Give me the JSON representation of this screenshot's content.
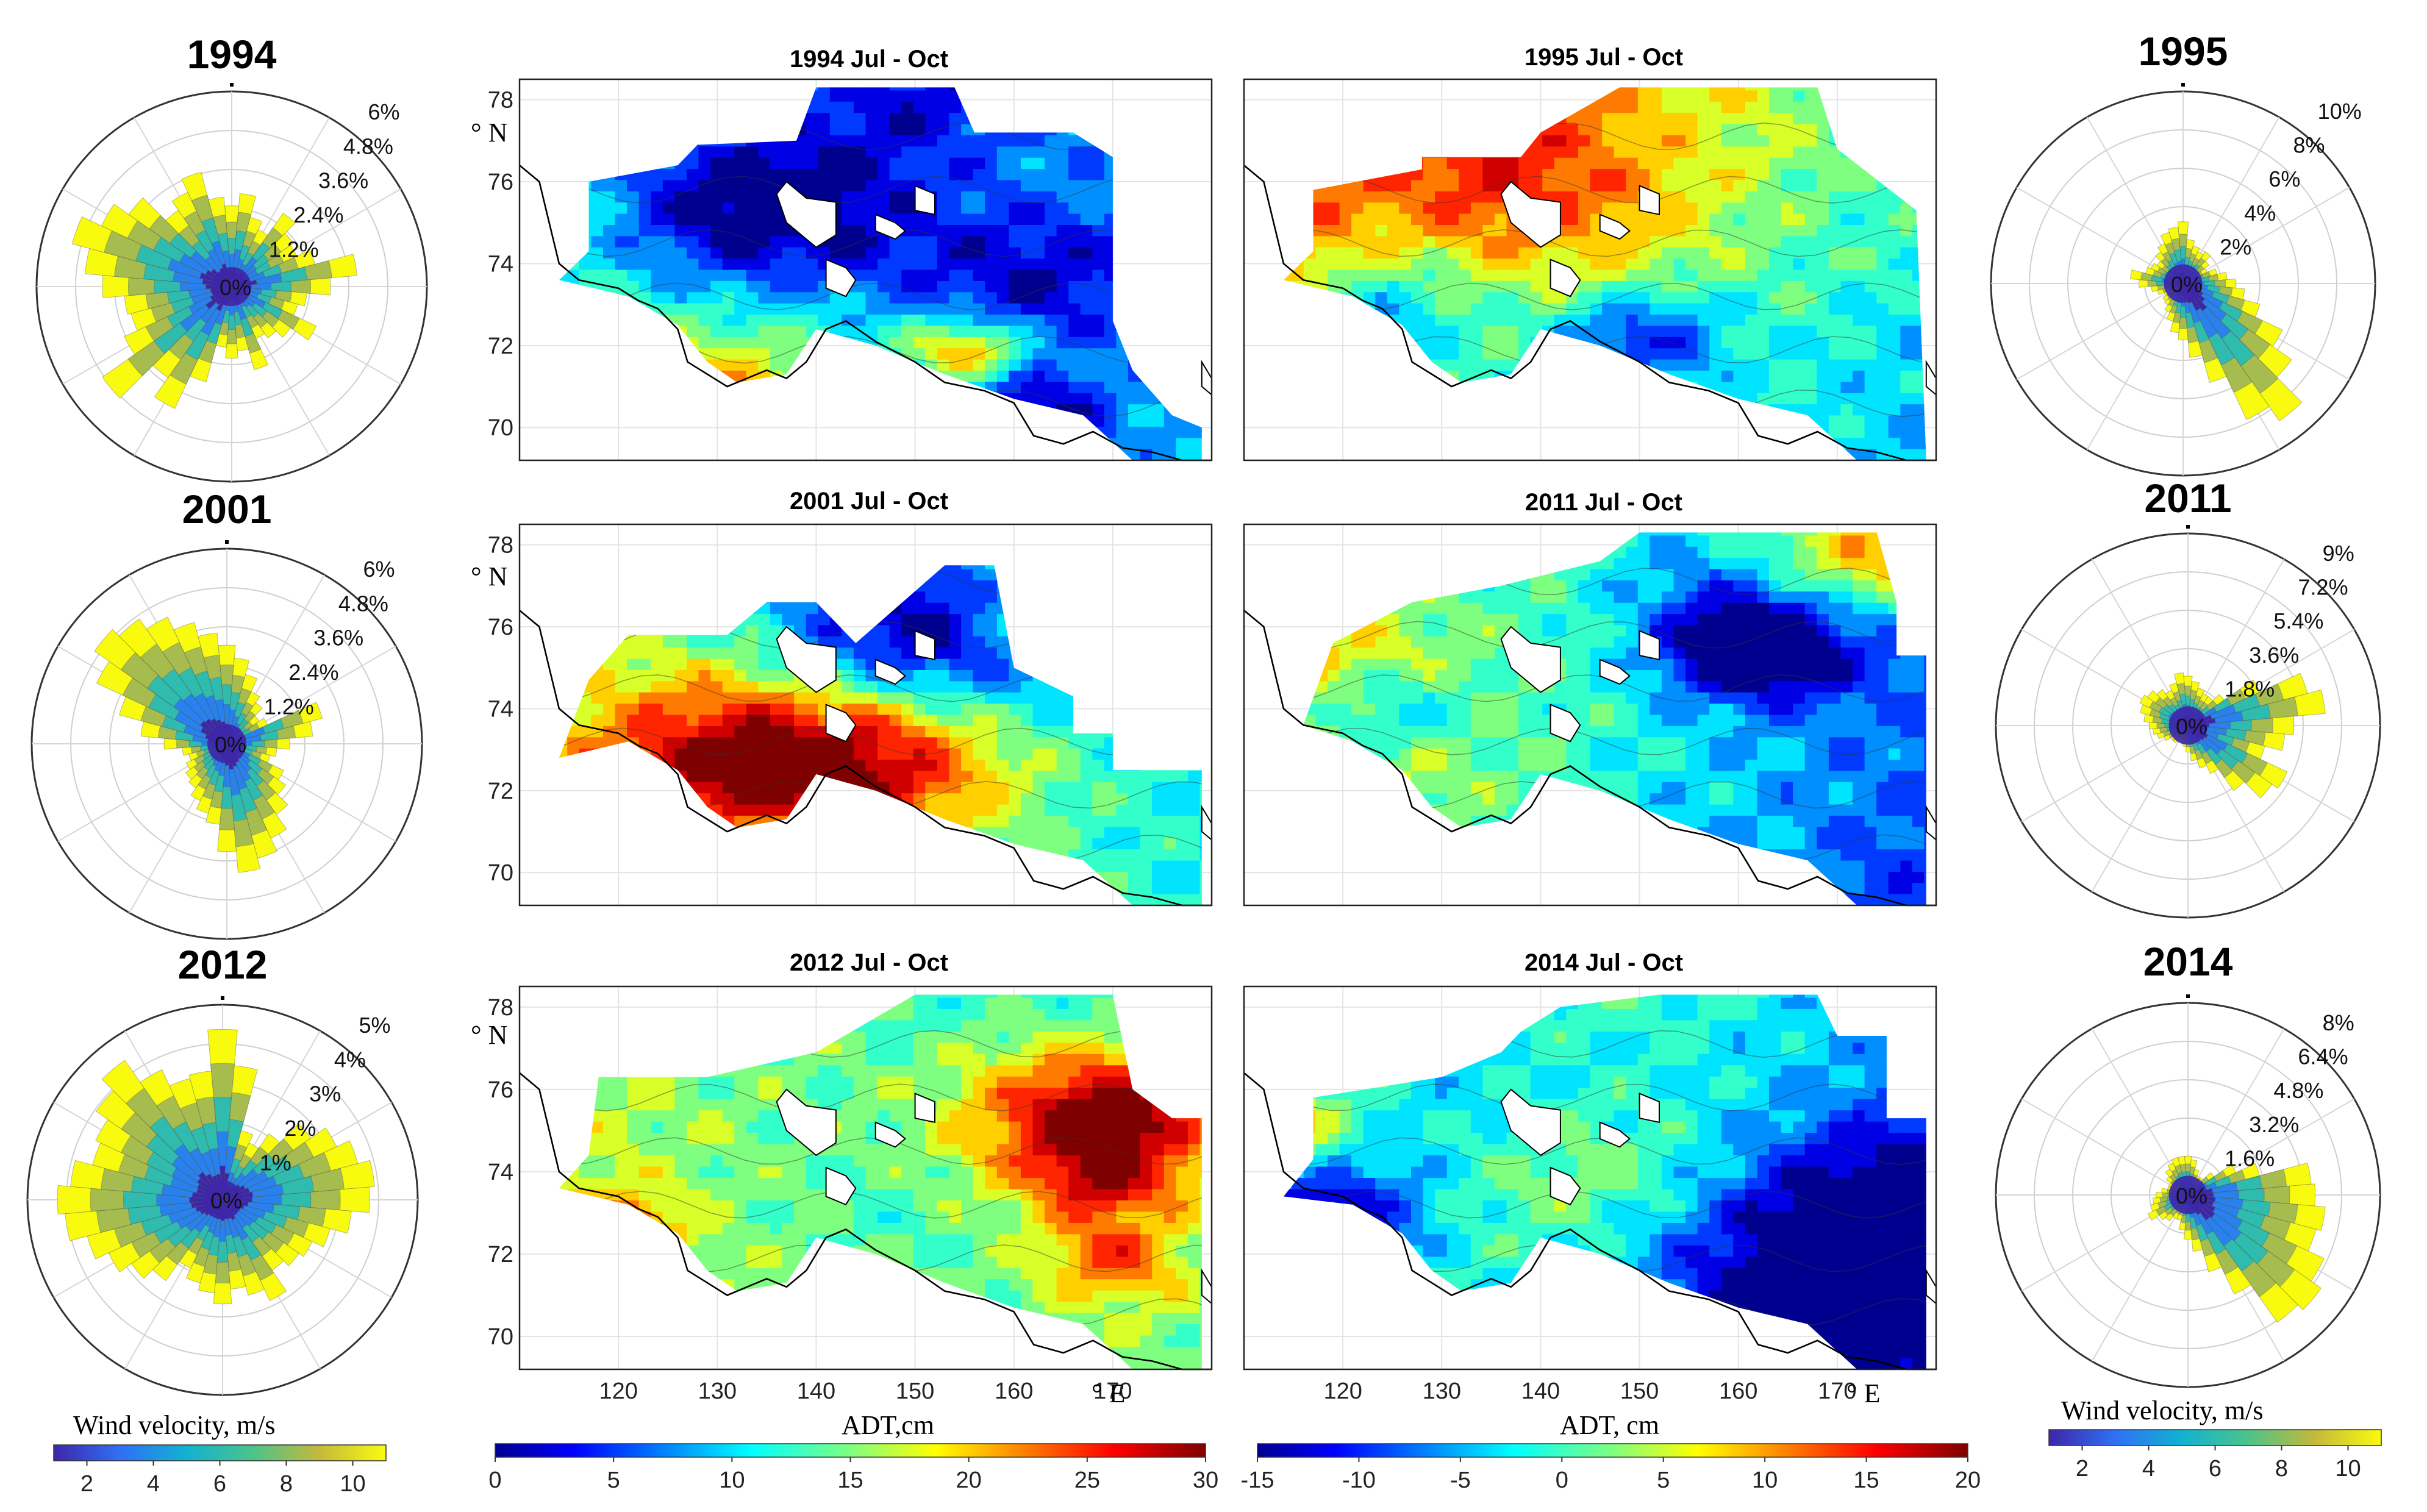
{
  "roses": [
    {
      "id": "r1994",
      "title": "1994",
      "radial_labels": [
        "6%",
        "4.8%",
        "3.6%",
        "2.4%",
        "1.2%",
        "0%"
      ],
      "dir_lengths": [
        0.45,
        0.52,
        0.4,
        0.35,
        0.5,
        0.42,
        0.4,
        0.48,
        0.7,
        0.55,
        0.42,
        0.38,
        0.52,
        0.4,
        0.35,
        0.32,
        0.48,
        0.36,
        0.4,
        0.34,
        0.55,
        0.75,
        0.62,
        0.88,
        0.66,
        0.58,
        0.6,
        0.72,
        0.82,
        0.92,
        0.8,
        0.7,
        0.52,
        0.58,
        0.66,
        0.5
      ]
    },
    {
      "id": "r1995",
      "title": "1995",
      "radial_labels": [
        "10%",
        "8%",
        "6%",
        "4%",
        "2%",
        "0%"
      ],
      "dir_lengths": [
        0.35,
        0.25,
        0.22,
        0.2,
        0.22,
        0.18,
        0.15,
        0.2,
        0.25,
        0.3,
        0.35,
        0.45,
        0.62,
        0.75,
        0.95,
        0.85,
        0.58,
        0.42,
        0.32,
        0.28,
        0.22,
        0.18,
        0.15,
        0.14,
        0.12,
        0.15,
        0.18,
        0.25,
        0.3,
        0.22,
        0.2,
        0.18,
        0.22,
        0.25,
        0.3,
        0.32
      ]
    },
    {
      "id": "r2001",
      "title": "2001",
      "radial_labels": [
        "6%",
        "4.8%",
        "3.6%",
        "2.4%",
        "1.2%",
        "0%"
      ],
      "dir_lengths": [
        0.55,
        0.48,
        0.4,
        0.32,
        0.28,
        0.22,
        0.25,
        0.55,
        0.48,
        0.35,
        0.28,
        0.25,
        0.35,
        0.4,
        0.48,
        0.58,
        0.66,
        0.72,
        0.6,
        0.45,
        0.4,
        0.35,
        0.3,
        0.28,
        0.25,
        0.22,
        0.25,
        0.35,
        0.48,
        0.62,
        0.8,
        0.9,
        0.85,
        0.78,
        0.7,
        0.62
      ]
    },
    {
      "id": "r2011",
      "title": "2011",
      "radial_labels": [
        "9%",
        "7.2%",
        "5.4%",
        "3.6%",
        "1.8%",
        "0%"
      ],
      "dir_lengths": [
        0.28,
        0.25,
        0.22,
        0.2,
        0.2,
        0.25,
        0.45,
        0.7,
        0.78,
        0.6,
        0.55,
        0.45,
        0.62,
        0.58,
        0.45,
        0.3,
        0.25,
        0.2,
        0.15,
        0.12,
        0.1,
        0.1,
        0.12,
        0.12,
        0.15,
        0.18,
        0.2,
        0.22,
        0.25,
        0.28,
        0.3,
        0.28,
        0.25,
        0.22,
        0.25,
        0.3
      ]
    },
    {
      "id": "r2012",
      "title": "2012",
      "radial_labels": [
        "5%",
        "4%",
        "3%",
        "2%",
        "1%",
        "0%"
      ],
      "dir_lengths": [
        0.95,
        0.75,
        0.4,
        0.35,
        0.45,
        0.6,
        0.7,
        0.78,
        0.85,
        0.82,
        0.72,
        0.62,
        0.55,
        0.52,
        0.48,
        0.62,
        0.55,
        0.5,
        0.58,
        0.52,
        0.48,
        0.42,
        0.55,
        0.62,
        0.7,
        0.78,
        0.88,
        0.92,
        0.85,
        0.75,
        0.78,
        0.86,
        0.95,
        0.8,
        0.7,
        0.72
      ]
    },
    {
      "id": "r2014",
      "title": "2014",
      "radial_labels": [
        "8%",
        "6.4%",
        "4.8%",
        "3.2%",
        "1.6%",
        "0%"
      ],
      "dir_lengths": [
        0.22,
        0.2,
        0.15,
        0.12,
        0.12,
        0.18,
        0.3,
        0.42,
        0.7,
        0.72,
        0.78,
        0.75,
        0.85,
        0.92,
        0.88,
        0.62,
        0.45,
        0.32,
        0.25,
        0.2,
        0.15,
        0.15,
        0.18,
        0.2,
        0.25,
        0.22,
        0.2,
        0.18,
        0.15,
        0.12,
        0.12,
        0.15,
        0.18,
        0.2,
        0.22,
        0.22
      ]
    }
  ],
  "maps": [
    {
      "id": "m1994",
      "title": "1994 Jul - Oct",
      "scale": "adt1",
      "seed": 3,
      "bias": 0.35,
      "mask": "a"
    },
    {
      "id": "m1995",
      "title": "1995 Jul - Oct",
      "scale": "adt2",
      "seed": 7,
      "bias": 0.55,
      "mask": "b"
    },
    {
      "id": "m2001",
      "title": "2001 Jul - Oct",
      "scale": "adt1",
      "seed": 11,
      "bias": 0.45,
      "mask": "c"
    },
    {
      "id": "m2011",
      "title": "2011 Jul - Oct",
      "scale": "adt2",
      "seed": 17,
      "bias": 0.42,
      "mask": "d"
    },
    {
      "id": "m2012",
      "title": "2012 Jul - Oct",
      "scale": "adt1",
      "seed": 23,
      "bias": 0.48,
      "mask": "e"
    },
    {
      "id": "m2014",
      "title": "2014 Jul - Oct",
      "scale": "adt2",
      "seed": 29,
      "bias": 0.4,
      "mask": "f"
    }
  ],
  "map_axes": {
    "lat_ticks": [
      "78",
      "76",
      "74",
      "72",
      "70"
    ],
    "lat_values": [
      78,
      76,
      74,
      72,
      70
    ],
    "lat_range": [
      69.2,
      78.5
    ],
    "lon_ticks": [
      "120",
      "130",
      "140",
      "150",
      "160",
      "170"
    ],
    "lon_values": [
      120,
      130,
      140,
      150,
      160,
      170
    ],
    "lon_range": [
      110,
      180
    ],
    "lat_unit": "° N",
    "lon_unit": "° E"
  },
  "colorbars": {
    "wind_left": {
      "label": "Wind velocity, m/s",
      "ticks": [
        "2",
        "4",
        "6",
        "8",
        "10"
      ],
      "values": [
        2,
        4,
        6,
        8,
        10
      ],
      "range": [
        1,
        11
      ]
    },
    "adt1": {
      "label": "ADT,cm",
      "ticks": [
        "0",
        "5",
        "10",
        "15",
        "20",
        "25",
        "30"
      ],
      "values": [
        0,
        5,
        10,
        15,
        20,
        25,
        30
      ],
      "range": [
        0,
        30
      ]
    },
    "adt2": {
      "label": "ADT, cm",
      "ticks": [
        "-15",
        "-10",
        "-5",
        "0",
        "5",
        "10",
        "15",
        "20"
      ],
      "values": [
        -15,
        -10,
        -5,
        0,
        5,
        10,
        15,
        20
      ],
      "range": [
        -15,
        20
      ]
    },
    "wind_right": {
      "label": "Wind velocity, m/s",
      "ticks": [
        "2",
        "4",
        "6",
        "8",
        "10"
      ],
      "values": [
        2,
        4,
        6,
        8,
        10
      ],
      "range": [
        1,
        11
      ]
    }
  },
  "chart_data": [
    {
      "type": "heatmap",
      "title": "1994 Jul - Oct",
      "xlabel": "° E",
      "ylabel": "° N",
      "colorbar": "ADT,cm",
      "zlim": [
        0,
        30
      ]
    },
    {
      "type": "heatmap",
      "title": "1995 Jul - Oct",
      "xlabel": "° E",
      "ylabel": "° N",
      "colorbar": "ADT, cm",
      "zlim": [
        -15,
        20
      ]
    },
    {
      "type": "heatmap",
      "title": "2001 Jul - Oct",
      "xlabel": "° E",
      "ylabel": "° N",
      "colorbar": "ADT,cm",
      "zlim": [
        0,
        30
      ]
    },
    {
      "type": "heatmap",
      "title": "2011 Jul - Oct",
      "xlabel": "° E",
      "ylabel": "° N",
      "colorbar": "ADT, cm",
      "zlim": [
        -15,
        20
      ]
    },
    {
      "type": "heatmap",
      "title": "2012 Jul - Oct",
      "xlabel": "° E",
      "ylabel": "° N",
      "colorbar": "ADT,cm",
      "zlim": [
        0,
        30
      ]
    },
    {
      "type": "heatmap",
      "title": "2014 Jul - Oct",
      "xlabel": "° E",
      "ylabel": "° N",
      "colorbar": "ADT, cm",
      "zlim": [
        -15,
        20
      ]
    },
    {
      "type": "rose",
      "title": "1994",
      "rlim_pct": [
        0,
        6
      ]
    },
    {
      "type": "rose",
      "title": "1995",
      "rlim_pct": [
        0,
        10
      ]
    },
    {
      "type": "rose",
      "title": "2001",
      "rlim_pct": [
        0,
        6
      ]
    },
    {
      "type": "rose",
      "title": "2011",
      "rlim_pct": [
        0,
        9
      ]
    },
    {
      "type": "rose",
      "title": "2012",
      "rlim_pct": [
        0,
        5
      ]
    },
    {
      "type": "rose",
      "title": "2014",
      "rlim_pct": [
        0,
        8
      ]
    }
  ]
}
